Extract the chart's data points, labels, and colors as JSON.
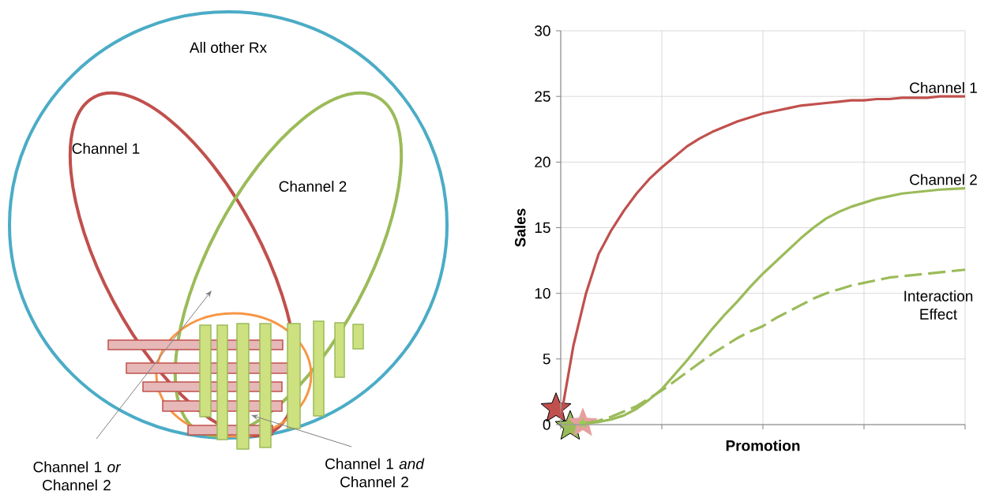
{
  "chart_data": [
    {
      "type": "other",
      "annotations": [
        "All other Rx",
        "Channel 1",
        "Channel 2",
        "Channel 1 *or* Channel 2",
        "Channel 1 *and* Channel 2"
      ]
    },
    {
      "type": "line",
      "xlabel": "Promotion",
      "ylabel": "Sales",
      "ylim": [
        0,
        30
      ],
      "categories": [
        null,
        null,
        null,
        null,
        null,
        null,
        null,
        null,
        null,
        null,
        null,
        null,
        null,
        null,
        null,
        null,
        null,
        null,
        null,
        null,
        null,
        null,
        null,
        null,
        null,
        null,
        null,
        null,
        null,
        null,
        null,
        null,
        null
      ],
      "yticks": [
        0,
        5,
        10,
        15,
        20,
        25,
        30
      ],
      "grid": true,
      "series": [
        {
          "name": "Channel 1",
          "color": "#c0504d",
          "values": [
            0.5,
            6,
            10,
            13,
            14.8,
            16.3,
            17.6,
            18.7,
            19.6,
            20.4,
            21.2,
            21.8,
            22.3,
            22.7,
            23.1,
            23.4,
            23.7,
            23.9,
            24.1,
            24.3,
            24.4,
            24.5,
            24.6,
            24.7,
            24.7,
            24.8,
            24.8,
            24.9,
            24.9,
            24.9,
            25,
            25,
            25
          ]
        },
        {
          "name": "Channel 2",
          "color": "#9bbb59",
          "values": [
            null,
            null,
            0.1,
            0.2,
            0.4,
            0.7,
            1.2,
            1.9,
            2.7,
            3.8,
            4.9,
            6.1,
            7.3,
            8.4,
            9.4,
            10.5,
            11.5,
            12.4,
            13.3,
            14.2,
            15,
            15.7,
            16.2,
            16.6,
            16.9,
            17.2,
            17.4,
            17.6,
            17.7,
            17.8,
            17.9,
            17.95,
            18
          ]
        },
        {
          "name": "Interaction Effect",
          "color": "#9bbb59",
          "line_style": "dashed",
          "values": [
            null,
            null,
            0.1,
            0.3,
            0.6,
            1.0,
            1.4,
            2.0,
            2.6,
            3.3,
            4.0,
            4.7,
            5.4,
            6.0,
            6.6,
            7.1,
            7.5,
            8.1,
            8.6,
            9.1,
            9.6,
            10.0,
            10.3,
            10.6,
            10.8,
            11.0,
            11.2,
            11.3,
            11.4,
            11.5,
            11.6,
            11.7,
            11.8
          ]
        }
      ]
    }
  ]
}
